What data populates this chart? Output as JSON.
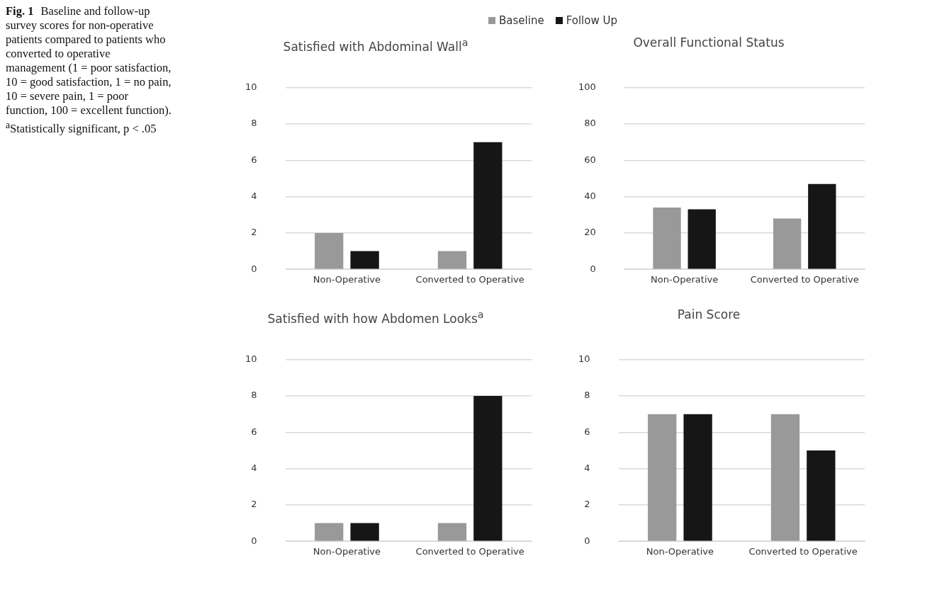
{
  "chart_data": [
    {
      "type": "bar",
      "title": "Satisfied with Abdominal Wall$^{a}$",
      "categories": [
        "Non-Operative",
        "Converted to Operative"
      ],
      "legend": "top",
      "annotations": [
        "Fig. 1",
        "Baseline and follow-up survey scores for non-operative patients compared to patients who converted to operative management (1 = poor satisfaction, 10 = good satisfaction, 1 = no pain, 10 = severe pain, 1 = poor function, 100 = excellent function). $^{a}$Statistically significant, p < .05"
      ],
      "series": [
        {
          "name": "Baseline",
          "color": "#999999",
          "values": [
            2,
            1
          ]
        },
        {
          "name": "Follow Up",
          "color": "#161616",
          "values": [
            1,
            7
          ]
        }
      ],
      "ylim": [
        0,
        10
      ],
      "yticks": [
        0,
        2,
        4,
        6,
        8,
        10
      ],
      "grid": "y"
    },
    {
      "type": "bar",
      "title": "Overall Functional Status",
      "categories": [
        "Non-Operative",
        "Converted to Operative"
      ],
      "series": [
        {
          "color": "#999999",
          "values": [
            34,
            28
          ]
        },
        {
          "color": "#161616",
          "values": [
            33,
            47
          ]
        }
      ],
      "ylim": [
        0,
        100
      ],
      "yticks": [
        0,
        20,
        40,
        60,
        80,
        100
      ],
      "grid": "y"
    },
    {
      "type": "bar",
      "title": "Satisfied with how Abdomen Looks$^{a}$",
      "categories": [
        "Non-Operative",
        "Converted to Operative"
      ],
      "series": [
        {
          "color": "#999999",
          "values": [
            1,
            1
          ]
        },
        {
          "color": "#161616",
          "values": [
            1,
            8
          ]
        }
      ],
      "ylim": [
        0,
        10
      ],
      "yticks": [
        0,
        2,
        4,
        6,
        8,
        10
      ],
      "grid": "y"
    },
    {
      "type": "bar",
      "title": "Pain Score",
      "categories": [
        "Non-Operative",
        "Converted to Operative"
      ],
      "series": [
        {
          "color": "#999999",
          "values": [
            7,
            7
          ]
        },
        {
          "color": "#161616",
          "values": [
            7,
            5
          ]
        }
      ],
      "ylim": [
        0,
        10
      ],
      "yticks": [
        0,
        2,
        4,
        6,
        8,
        10
      ],
      "grid": "y"
    }
  ]
}
